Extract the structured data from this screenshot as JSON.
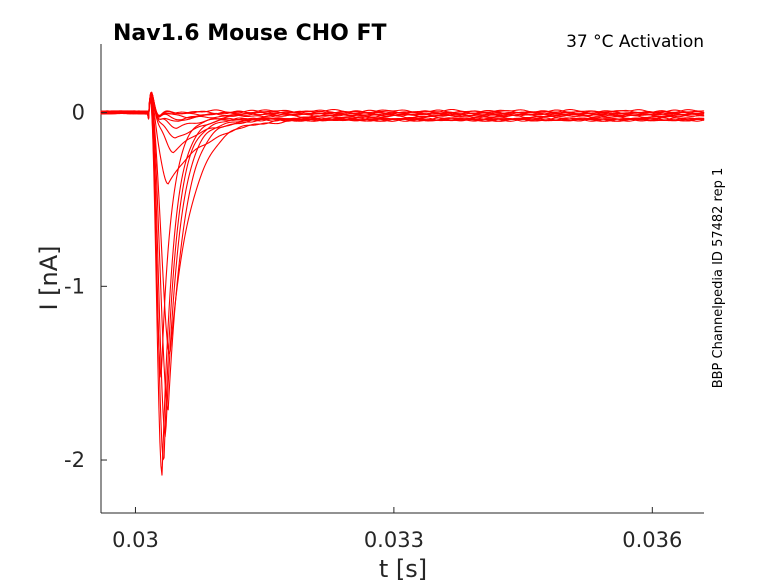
{
  "chart_data": {
    "type": "line",
    "title": "Nav1.6  Mouse  CHO FT",
    "subtitle": "37 °C  Activation",
    "side_note": "BBP Channelpedia ID 57482 rep 1",
    "xlabel": "t [s]",
    "ylabel": "I [nA]",
    "xlim": [
      0.0296,
      0.0366
    ],
    "ylim": [
      -2.305,
      0.395
    ],
    "x_ticks": [
      0.03,
      0.033,
      0.036
    ],
    "x_tick_labels": [
      "0.03",
      "0.033",
      "0.036"
    ],
    "y_ticks": [
      0,
      -1,
      -2
    ],
    "y_tick_labels": [
      "0",
      "-1",
      "-2"
    ],
    "grid": false,
    "legend": "none",
    "line_color": "#ff0000",
    "series": [
      {
        "t_onset": 0.03015,
        "peak_time": 0.03075,
        "peak": -0.002,
        "rise": 0.0001,
        "decay": 0.0003,
        "steady": 0.008
      },
      {
        "t_onset": 0.03015,
        "peak_time": 0.0307,
        "peak": -0.006,
        "rise": 0.0001,
        "decay": 0.0003,
        "steady": 0.005
      },
      {
        "t_onset": 0.03015,
        "peak_time": 0.03065,
        "peak": -0.012,
        "rise": 0.0001,
        "decay": 0.0003,
        "steady": 0.001
      },
      {
        "t_onset": 0.03015,
        "peak_time": 0.0306,
        "peak": -0.02,
        "rise": 0.0001,
        "decay": 0.0003,
        "steady": -0.003
      },
      {
        "t_onset": 0.03015,
        "peak_time": 0.03055,
        "peak": -0.03,
        "rise": 0.0001,
        "decay": 0.0003,
        "steady": -0.006
      },
      {
        "t_onset": 0.03015,
        "peak_time": 0.0305,
        "peak": -0.048,
        "rise": 0.0001,
        "decay": 0.00032,
        "steady": -0.01
      },
      {
        "t_onset": 0.03015,
        "peak_time": 0.03048,
        "peak": -0.085,
        "rise": 0.0001,
        "decay": 0.00035,
        "steady": -0.013
      },
      {
        "t_onset": 0.03015,
        "peak_time": 0.03046,
        "peak": -0.14,
        "rise": 0.00011,
        "decay": 0.0004,
        "steady": -0.016
      },
      {
        "t_onset": 0.03015,
        "peak_time": 0.03044,
        "peak": -0.21,
        "rise": 0.00012,
        "decay": 0.00045,
        "steady": -0.02
      },
      {
        "t_onset": 0.03015,
        "peak_time": 0.03038,
        "peak": -0.4,
        "rise": 0.00012,
        "decay": 0.00045,
        "steady": -0.03
      },
      {
        "t_onset": 0.03015,
        "peak_time": 0.0304,
        "peak": -1.38,
        "rise": 9e-05,
        "decay": 0.00025,
        "steady": -0.04
      },
      {
        "t_onset": 0.03015,
        "peak_time": 0.03038,
        "peak": -1.7,
        "rise": 8e-05,
        "decay": 0.00018,
        "steady": -0.04
      },
      {
        "t_onset": 0.03015,
        "peak_time": 0.03035,
        "peak": -1.85,
        "rise": 7e-05,
        "decay": 0.00016,
        "steady": -0.04
      },
      {
        "t_onset": 0.03015,
        "peak_time": 0.03033,
        "peak": -2.0,
        "rise": 6e-05,
        "decay": 0.00014,
        "steady": -0.04
      },
      {
        "t_onset": 0.03015,
        "peak_time": 0.03031,
        "peak": -2.07,
        "rise": 6e-05,
        "decay": 0.00013,
        "steady": -0.04
      },
      {
        "t_onset": 0.03015,
        "peak_time": 0.0303,
        "peak": -1.5,
        "rise": 5e-05,
        "decay": 0.00012,
        "steady": -0.04
      }
    ]
  }
}
